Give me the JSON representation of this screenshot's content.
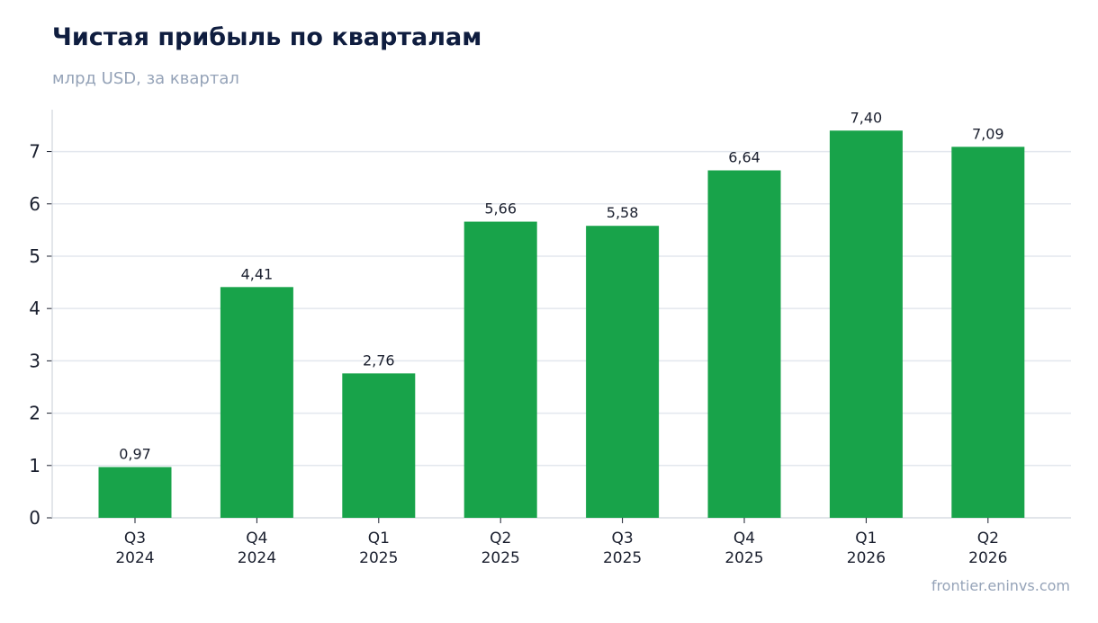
{
  "title": "Чистая прибыль по кварталам",
  "subtitle": "млрд USD, за квартал",
  "source": "frontier.eninvs.com",
  "colors": {
    "bar": "#18a34a",
    "title": "#0f1d3f",
    "muted": "#95a3b8",
    "grid": "#e3e7ee",
    "axis": "#d0d5dd",
    "text": "#1a1f2e"
  },
  "chart_data": {
    "type": "bar",
    "title": "Чистая прибыль по кварталам",
    "subtitle": "млрд USD, за квартал",
    "categories": [
      [
        "Q3",
        "2024"
      ],
      [
        "Q4",
        "2024"
      ],
      [
        "Q1",
        "2025"
      ],
      [
        "Q2",
        "2025"
      ],
      [
        "Q3",
        "2025"
      ],
      [
        "Q4",
        "2025"
      ],
      [
        "Q1",
        "2026"
      ],
      [
        "Q2",
        "2026"
      ]
    ],
    "values": [
      0.97,
      4.41,
      2.76,
      5.66,
      5.58,
      6.64,
      7.4,
      7.09
    ],
    "value_labels": [
      "0,97",
      "4,41",
      "2,76",
      "5,66",
      "5,58",
      "6,64",
      "7,40",
      "7,09"
    ],
    "y_ticks": [
      0,
      1,
      2,
      3,
      4,
      5,
      6,
      7
    ],
    "ylim": [
      0,
      7.8
    ],
    "xlabel": "",
    "ylabel": "",
    "grid": true,
    "legend": "none"
  }
}
